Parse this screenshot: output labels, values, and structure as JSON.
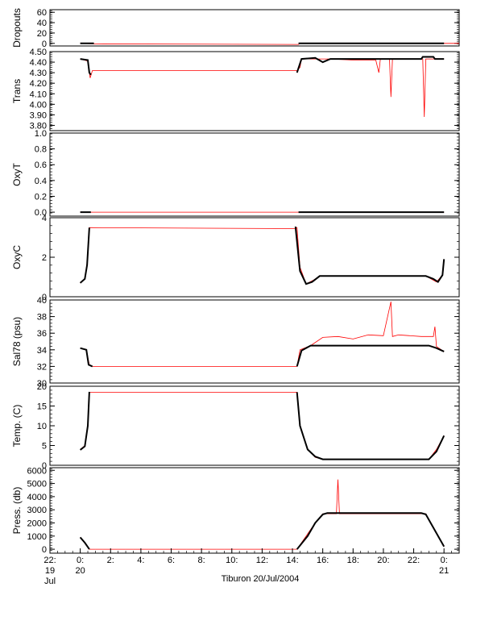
{
  "chart_data": {
    "type": "line",
    "title": "",
    "xlabel": "Tiburon 20/Jul/2004",
    "x_unit": "hours relative to 00:00 20 Jul 2004",
    "xlim": [
      -2,
      25
    ],
    "x_ticks": [
      {
        "v": -2,
        "l1": "22:",
        "l2": "19",
        "l3": "Jul"
      },
      {
        "v": 0,
        "l1": "0:",
        "l2": "20",
        "l3": ""
      },
      {
        "v": 2,
        "l1": "2:",
        "l2": "",
        "l3": ""
      },
      {
        "v": 4,
        "l1": "4:",
        "l2": "",
        "l3": ""
      },
      {
        "v": 6,
        "l1": "6:",
        "l2": "",
        "l3": ""
      },
      {
        "v": 8,
        "l1": "8:",
        "l2": "",
        "l3": ""
      },
      {
        "v": 10,
        "l1": "10:",
        "l2": "",
        "l3": ""
      },
      {
        "v": 12,
        "l1": "12:",
        "l2": "",
        "l3": ""
      },
      {
        "v": 14,
        "l1": "14:",
        "l2": "",
        "l3": ""
      },
      {
        "v": 16,
        "l1": "16:",
        "l2": "",
        "l3": ""
      },
      {
        "v": 18,
        "l1": "18:",
        "l2": "",
        "l3": ""
      },
      {
        "v": 20,
        "l1": "20:",
        "l2": "",
        "l3": ""
      },
      {
        "v": 22,
        "l1": "22:",
        "l2": "",
        "l3": ""
      },
      {
        "v": 24,
        "l1": "0:",
        "l2": "21",
        "l3": ""
      }
    ],
    "colors": {
      "raw": "#ff0000",
      "smoothed": "#000000",
      "axis": "#000000"
    },
    "panels": [
      {
        "id": "dropouts",
        "ylabel": "Dropouts",
        "ylim": [
          -5,
          65
        ],
        "ticks": [
          {
            "v": 0,
            "l": "0"
          },
          {
            "v": 20,
            "l": "20"
          },
          {
            "v": 40,
            "l": "40"
          },
          {
            "v": 60,
            "l": "60"
          }
        ],
        "raw": [
          [
            0,
            0
          ],
          [
            0.9,
            -1
          ],
          [
            14.2,
            -2
          ],
          [
            14.4,
            -2
          ],
          [
            14.5,
            0
          ],
          [
            25,
            0
          ]
        ],
        "smooth": [
          [
            0,
            0
          ],
          [
            0.9,
            0
          ],
          [
            14.4,
            null
          ],
          [
            14.4,
            0
          ],
          [
            24,
            0
          ]
        ]
      },
      {
        "id": "trans",
        "ylabel": "Trans",
        "ylim": [
          3.75,
          4.5
        ],
        "ticks": [
          {
            "v": 3.8,
            "l": "3.80"
          },
          {
            "v": 3.9,
            "l": "3.90"
          },
          {
            "v": 4.0,
            "l": "4.00"
          },
          {
            "v": 4.1,
            "l": "4.10"
          },
          {
            "v": 4.2,
            "l": "4.20"
          },
          {
            "v": 4.3,
            "l": "4.30"
          },
          {
            "v": 4.4,
            "l": "4.40"
          },
          {
            "v": 4.5,
            "l": "4.50"
          }
        ],
        "raw": [
          [
            0,
            4.43
          ],
          [
            0.5,
            4.41
          ],
          [
            0.65,
            4.25
          ],
          [
            0.8,
            4.32
          ],
          [
            14.3,
            4.32
          ],
          [
            14.5,
            4.35
          ],
          [
            14.6,
            4.43
          ],
          [
            16.5,
            4.43
          ],
          [
            18,
            4.42
          ],
          [
            19.5,
            4.42
          ],
          [
            19.7,
            4.3
          ],
          [
            19.8,
            4.43
          ],
          [
            20.4,
            4.43
          ],
          [
            20.5,
            4.07
          ],
          [
            20.6,
            4.43
          ],
          [
            22.6,
            4.43
          ],
          [
            22.7,
            3.88
          ],
          [
            22.8,
            4.43
          ],
          [
            24,
            4.43
          ]
        ],
        "smooth": [
          [
            0,
            4.43
          ],
          [
            0.5,
            4.42
          ],
          [
            0.6,
            4.3
          ],
          [
            0.7,
            4.28
          ],
          [
            14.3,
            null
          ],
          [
            14.3,
            4.3
          ],
          [
            14.6,
            4.43
          ],
          [
            15.5,
            4.44
          ],
          [
            16,
            4.4
          ],
          [
            16.5,
            4.43
          ],
          [
            20.5,
            4.43
          ],
          [
            22.5,
            4.43
          ],
          [
            22.6,
            4.45
          ],
          [
            23.3,
            4.45
          ],
          [
            23.4,
            4.43
          ],
          [
            24,
            4.43
          ]
        ]
      },
      {
        "id": "oxyt",
        "ylabel": "OxyT",
        "ylim": [
          -0.05,
          1.0
        ],
        "ticks": [
          {
            "v": 0.0,
            "l": "0.0"
          },
          {
            "v": 0.2,
            "l": "0.2"
          },
          {
            "v": 0.4,
            "l": "0.4"
          },
          {
            "v": 0.6,
            "l": "0.6"
          },
          {
            "v": 0.8,
            "l": "0.8"
          },
          {
            "v": 1.0,
            "l": "1.0"
          }
        ],
        "raw": [
          [
            0,
            0
          ],
          [
            24,
            0
          ]
        ],
        "smooth": [
          [
            0,
            0
          ],
          [
            0.7,
            0
          ],
          [
            14.4,
            null
          ],
          [
            14.4,
            0
          ],
          [
            24,
            0
          ]
        ]
      },
      {
        "id": "oxyc",
        "ylabel": "OxyC",
        "ylim": [
          0,
          4
        ],
        "ticks": [
          {
            "v": 0,
            "l": "0"
          },
          {
            "v": 2,
            "l": "2"
          },
          {
            "v": 4,
            "l": "4"
          }
        ],
        "raw": [
          [
            0,
            0.7
          ],
          [
            0.3,
            0.9
          ],
          [
            0.5,
            2.0
          ],
          [
            0.6,
            3.5
          ],
          [
            0.7,
            3.5
          ],
          [
            14.2,
            3.45
          ],
          [
            14.3,
            3.5
          ],
          [
            14.5,
            1.5
          ],
          [
            14.9,
            0.65
          ],
          [
            15.4,
            0.85
          ],
          [
            15.8,
            1.05
          ],
          [
            22.8,
            1.05
          ],
          [
            23.5,
            0.75
          ],
          [
            23.9,
            1.1
          ],
          [
            24,
            1.9
          ]
        ],
        "smooth": [
          [
            0,
            0.7
          ],
          [
            0.3,
            0.9
          ],
          [
            0.45,
            1.6
          ],
          [
            0.6,
            3.5
          ],
          [
            14.2,
            null
          ],
          [
            14.2,
            3.55
          ],
          [
            14.5,
            1.3
          ],
          [
            14.9,
            0.65
          ],
          [
            15.3,
            0.75
          ],
          [
            15.8,
            1.05
          ],
          [
            22.8,
            1.05
          ],
          [
            23.3,
            0.9
          ],
          [
            23.6,
            0.75
          ],
          [
            23.9,
            1.1
          ],
          [
            24,
            1.9
          ]
        ]
      },
      {
        "id": "sal",
        "ylabel": "Sal78 (psu)",
        "ylim": [
          30,
          40
        ],
        "ticks": [
          {
            "v": 30,
            "l": "30"
          },
          {
            "v": 32,
            "l": "32"
          },
          {
            "v": 34,
            "l": "34"
          },
          {
            "v": 36,
            "l": "36"
          },
          {
            "v": 38,
            "l": "38"
          },
          {
            "v": 40,
            "l": "40"
          }
        ],
        "raw": [
          [
            0,
            34.2
          ],
          [
            0.4,
            34.0
          ],
          [
            0.6,
            32.2
          ],
          [
            0.8,
            32.0
          ],
          [
            14.3,
            32.0
          ],
          [
            14.5,
            34.0
          ],
          [
            15.2,
            34.5
          ],
          [
            16,
            35.5
          ],
          [
            17,
            35.6
          ],
          [
            18,
            35.3
          ],
          [
            19,
            35.8
          ],
          [
            20,
            35.7
          ],
          [
            20.5,
            39.8
          ],
          [
            20.6,
            35.6
          ],
          [
            21,
            35.8
          ],
          [
            22.5,
            35.6
          ],
          [
            23.3,
            35.6
          ],
          [
            23.4,
            36.8
          ],
          [
            23.5,
            34.4
          ],
          [
            24,
            33.8
          ]
        ],
        "smooth": [
          [
            0,
            34.2
          ],
          [
            0.4,
            34.0
          ],
          [
            0.55,
            32.2
          ],
          [
            0.8,
            32.0
          ],
          [
            14.3,
            null
          ],
          [
            14.3,
            32.0
          ],
          [
            14.6,
            33.9
          ],
          [
            15.2,
            34.5
          ],
          [
            23.0,
            34.5
          ],
          [
            23.5,
            34.2
          ],
          [
            24,
            33.8
          ]
        ]
      },
      {
        "id": "temp",
        "ylabel": "Temp. (C)",
        "ylim": [
          0,
          20
        ],
        "ticks": [
          {
            "v": 0,
            "l": "0"
          },
          {
            "v": 5,
            "l": "5"
          },
          {
            "v": 10,
            "l": "10"
          },
          {
            "v": 15,
            "l": "15"
          },
          {
            "v": 20,
            "l": "20"
          }
        ],
        "raw": [
          [
            0,
            4
          ],
          [
            0.3,
            5
          ],
          [
            0.5,
            10
          ],
          [
            0.6,
            18.5
          ],
          [
            14.3,
            18.5
          ],
          [
            14.5,
            10
          ],
          [
            15,
            4
          ],
          [
            15.5,
            2
          ],
          [
            16,
            1.5
          ],
          [
            23,
            1.5
          ],
          [
            23.5,
            4
          ],
          [
            24,
            7.5
          ]
        ],
        "smooth": [
          [
            0,
            3.9
          ],
          [
            0.3,
            4.8
          ],
          [
            0.5,
            10
          ],
          [
            0.6,
            18.6
          ],
          [
            14.3,
            null
          ],
          [
            14.3,
            18.5
          ],
          [
            14.5,
            10
          ],
          [
            15,
            4
          ],
          [
            15.5,
            2.2
          ],
          [
            16,
            1.5
          ],
          [
            23,
            1.5
          ],
          [
            23.5,
            3.5
          ],
          [
            24,
            7.5
          ]
        ]
      },
      {
        "id": "press",
        "ylabel": "Press. (db)",
        "ylim": [
          -300,
          6200
        ],
        "ticks": [
          {
            "v": 0,
            "l": "0"
          },
          {
            "v": 1000,
            "l": "1000"
          },
          {
            "v": 2000,
            "l": "2000"
          },
          {
            "v": 3000,
            "l": "3000"
          },
          {
            "v": 4000,
            "l": "4000"
          },
          {
            "v": 5000,
            "l": "5000"
          },
          {
            "v": 6000,
            "l": "6000"
          }
        ],
        "raw": [
          [
            0,
            900
          ],
          [
            0.6,
            0
          ],
          [
            14.3,
            0
          ],
          [
            15.5,
            2000
          ],
          [
            16,
            2700
          ],
          [
            16.9,
            2700
          ],
          [
            17,
            5300
          ],
          [
            17.1,
            2700
          ],
          [
            22.8,
            2700
          ],
          [
            24,
            200
          ]
        ],
        "smooth": [
          [
            0,
            900
          ],
          [
            0.3,
            500
          ],
          [
            0.6,
            0
          ],
          [
            14.3,
            null
          ],
          [
            14.3,
            0
          ],
          [
            15,
            1000
          ],
          [
            15.5,
            2000
          ],
          [
            16,
            2650
          ],
          [
            16.3,
            2750
          ],
          [
            22.5,
            2750
          ],
          [
            22.8,
            2650
          ],
          [
            24,
            200
          ]
        ]
      }
    ]
  }
}
